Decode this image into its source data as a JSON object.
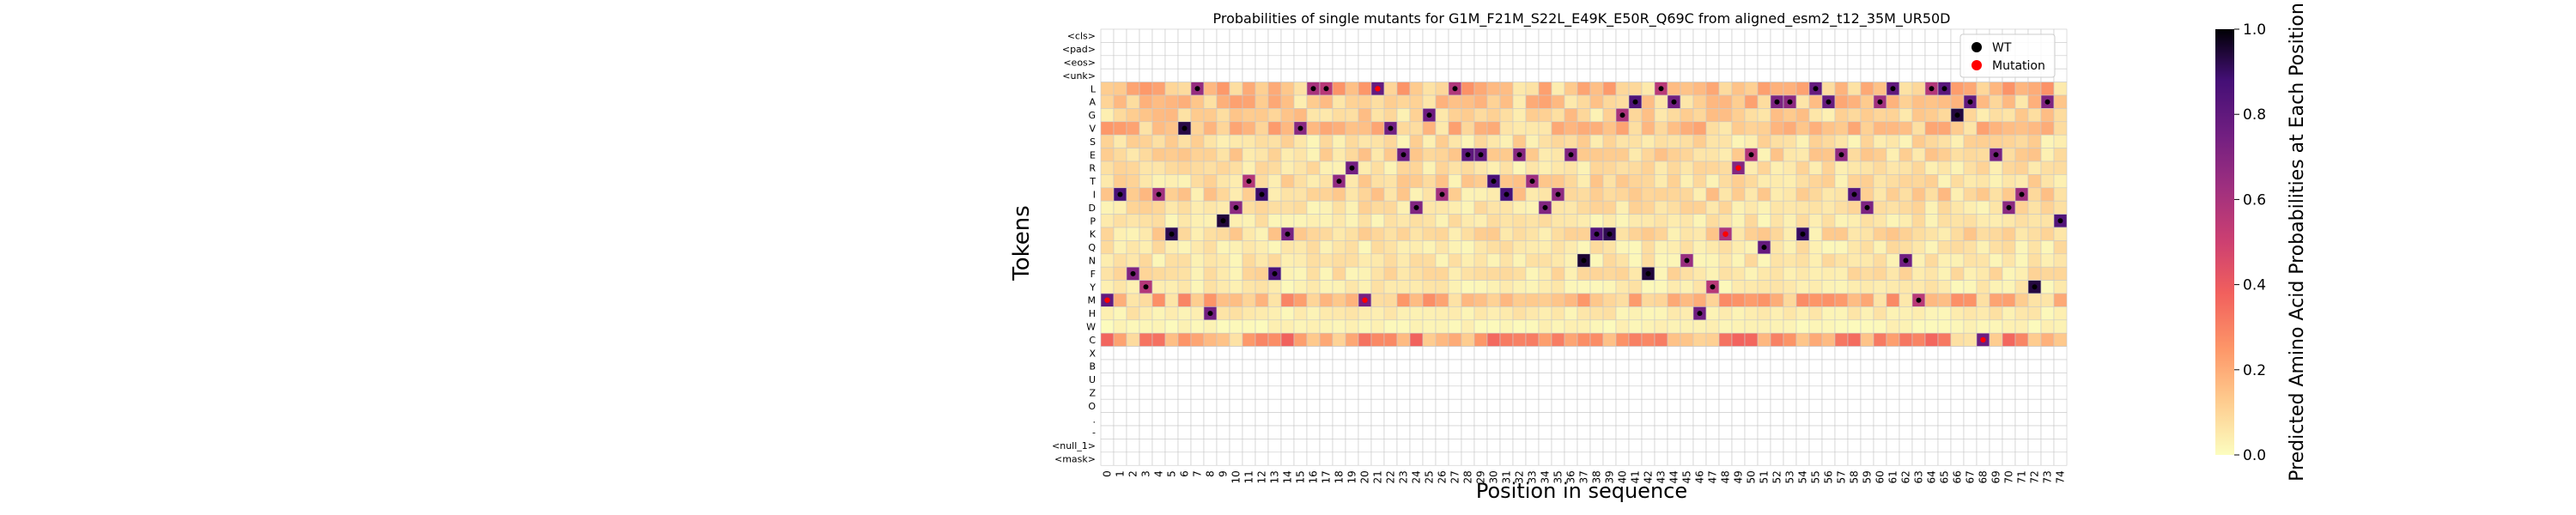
{
  "chart_data": {
    "type": "heatmap",
    "title": "Probabilities of single mutants for G1M_F21M_S22L_E49K_E50R_Q69C from aligned_esm2_t12_35M_UR50D",
    "xlabel": "Position in sequence",
    "ylabel": "Tokens",
    "tokens": [
      "<cls>",
      "<pad>",
      "<eos>",
      "<unk>",
      "L",
      "A",
      "G",
      "V",
      "S",
      "E",
      "R",
      "T",
      "I",
      "D",
      "P",
      "K",
      "Q",
      "N",
      "F",
      "Y",
      "M",
      "H",
      "W",
      "C",
      "X",
      "B",
      "U",
      "Z",
      "O",
      ".",
      "-",
      "<null_1>",
      "<mask>"
    ],
    "positions": [
      0,
      1,
      2,
      3,
      4,
      5,
      6,
      7,
      8,
      9,
      10,
      11,
      12,
      13,
      14,
      15,
      16,
      17,
      18,
      19,
      20,
      21,
      22,
      23,
      24,
      25,
      26,
      27,
      28,
      29,
      30,
      31,
      32,
      33,
      34,
      35,
      36,
      37,
      38,
      39,
      40,
      41,
      42,
      43,
      44,
      45,
      46,
      47,
      48,
      49,
      50,
      51,
      52,
      53,
      54,
      55,
      56,
      57,
      58,
      59,
      60,
      61,
      62,
      63,
      64,
      65,
      66,
      67,
      68,
      69,
      70,
      71,
      72,
      73,
      74
    ],
    "wt_sequence": [
      "M",
      "I",
      "F",
      "Y",
      "I",
      "K",
      "V",
      "L",
      "H",
      "P",
      "D",
      "T",
      "I",
      "F",
      "K",
      "V",
      "L",
      "L",
      "T",
      "R",
      "M",
      "L",
      "V",
      "E",
      "D",
      "G",
      "I",
      "L",
      "E",
      "E",
      "T",
      "I",
      "E",
      "T",
      "D",
      "I",
      "E",
      "N",
      "K",
      "K",
      "G",
      "A",
      "F",
      "L",
      "A",
      "N",
      "H",
      "Y",
      "K",
      "R",
      "E",
      "Q",
      "A",
      "A",
      "K",
      "L",
      "A",
      "E",
      "I",
      "D",
      "A",
      "L",
      "N",
      "M",
      "L",
      "L",
      "G",
      "A",
      "C",
      "E",
      "D",
      "I",
      "Y",
      "A",
      "P"
    ],
    "mutations": [
      {
        "position": 0,
        "token": "M"
      },
      {
        "position": 20,
        "token": "M"
      },
      {
        "position": 21,
        "token": "L"
      },
      {
        "position": 48,
        "token": "K"
      },
      {
        "position": 49,
        "token": "R"
      },
      {
        "position": 68,
        "token": "C"
      }
    ],
    "colorbar": {
      "label": "Predicted Amino Acid Probabilities at Each Position",
      "colormap": "magma_r",
      "min": 0.0,
      "max": 1.0,
      "ticks": [
        "0.0",
        "0.2",
        "0.4",
        "0.6",
        "0.8",
        "1.0"
      ]
    },
    "legend": {
      "placement": "top-right",
      "items": [
        {
          "label": "WT",
          "color": "#000000"
        },
        {
          "label": "Mutation",
          "color": "#ff0000"
        }
      ]
    },
    "grid": true
  }
}
